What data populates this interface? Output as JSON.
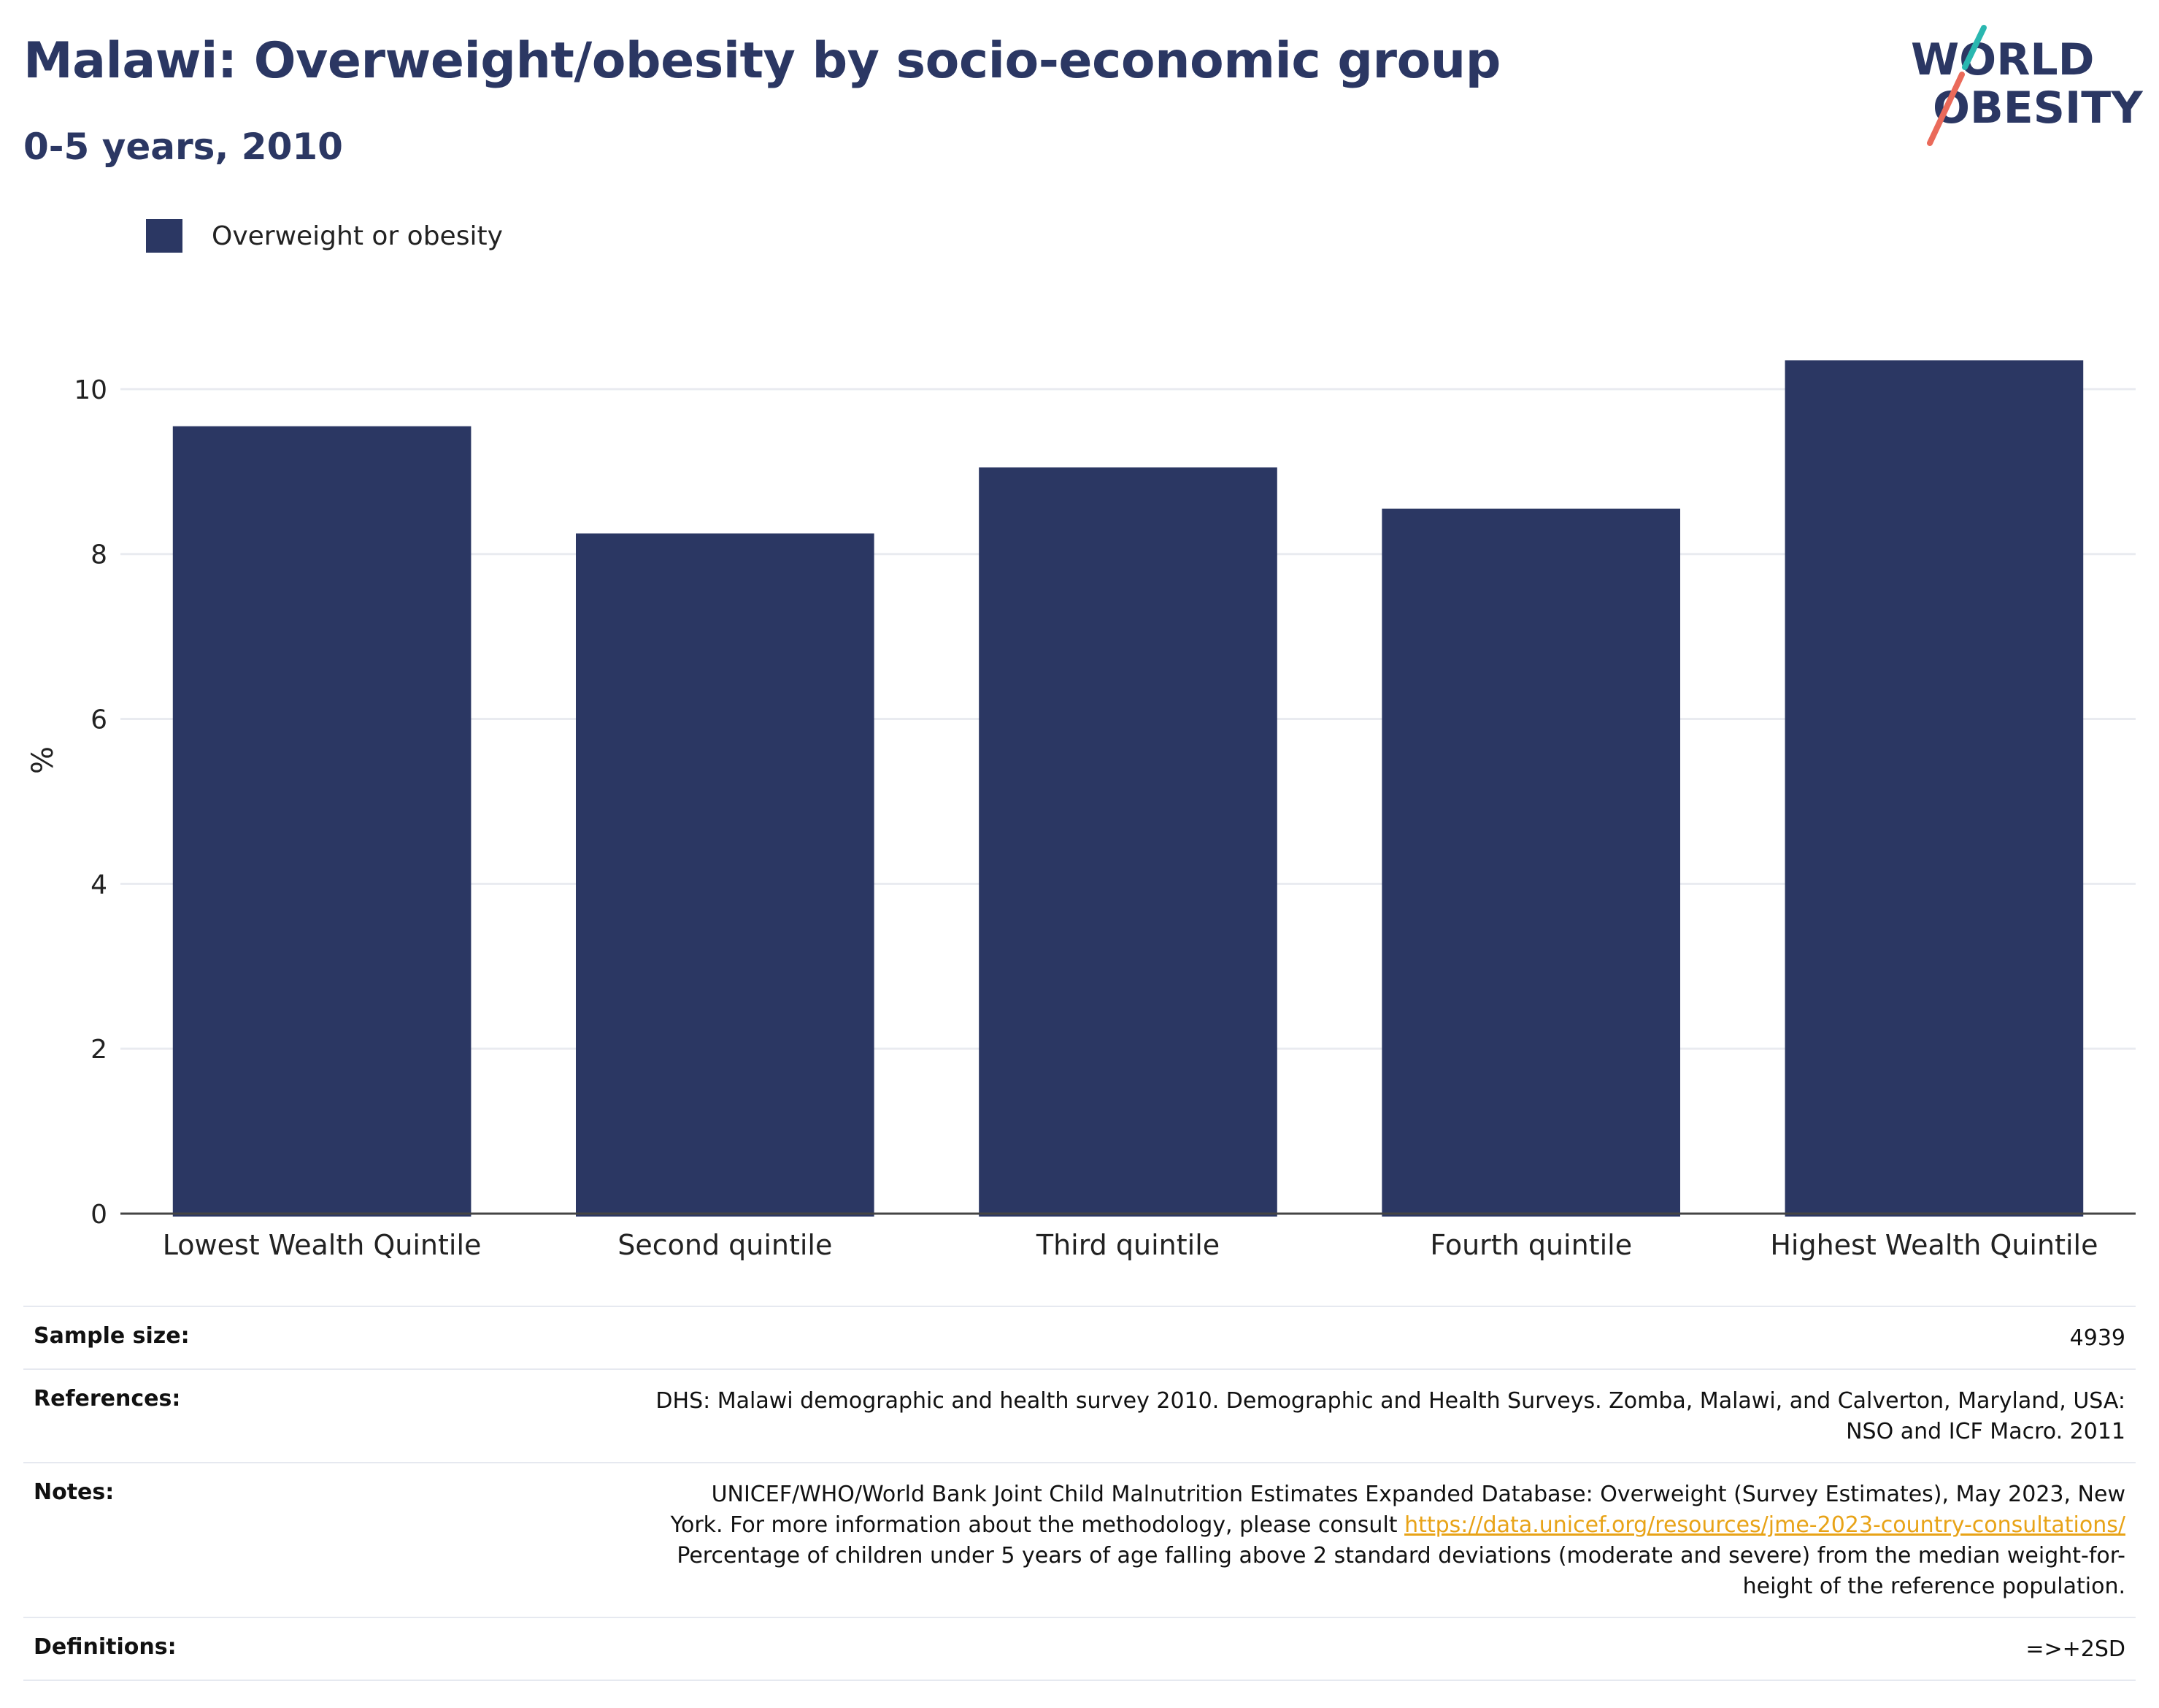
{
  "header": {
    "title": "Malawi: Overweight/obesity by socio-economic group",
    "subtitle": "0-5 years, 2010"
  },
  "logo": {
    "line1": "WORLD",
    "line2": "OBESITY",
    "colors": {
      "text": "#2b3763",
      "slash_top": "#2ab7b0",
      "slash_bottom": "#ea6a5a"
    }
  },
  "legend": {
    "items": [
      {
        "label": "Overweight or obesity",
        "color": "#2b3763"
      }
    ]
  },
  "chart_data": {
    "type": "bar",
    "categories": [
      "Lowest Wealth Quintile",
      "Second quintile",
      "Third quintile",
      "Fourth quintile",
      "Highest Wealth Quintile"
    ],
    "series": [
      {
        "name": "Overweight or obesity",
        "values": [
          9.55,
          8.25,
          9.05,
          8.55,
          10.35
        ],
        "color": "#2b3763"
      }
    ],
    "ylabel": "%",
    "ylim": [
      0,
      11
    ],
    "yticks": [
      0,
      2,
      4,
      6,
      8,
      10
    ],
    "grid": true,
    "legend_position": "top-left"
  },
  "meta": {
    "sample_size": {
      "label": "Sample size:",
      "value": "4939"
    },
    "references": {
      "label": "References:",
      "line1": "DHS: Malawi demographic and health survey 2010. Demographic and Health Surveys. Zomba, Malawi, and Calverton, Maryland, USA:",
      "line2": "NSO and ICF Macro. 2011"
    },
    "notes": {
      "label": "Notes:",
      "line1": "UNICEF/WHO/World Bank Joint Child Malnutrition Estimates Expanded Database: Overweight (Survey Estimates), May 2023, New",
      "line2_prefix": "York. For more information about the methodology, please consult ",
      "link": "https://data.unicef.org/resources/jme-2023-country-consultations/",
      "line3": "Percentage of children under 5 years of age falling above 2 standard deviations (moderate and severe) from the median weight-for-",
      "line4": "height of the reference population."
    },
    "definitions": {
      "label": "Definitions:",
      "value": "=>+2SD"
    }
  }
}
